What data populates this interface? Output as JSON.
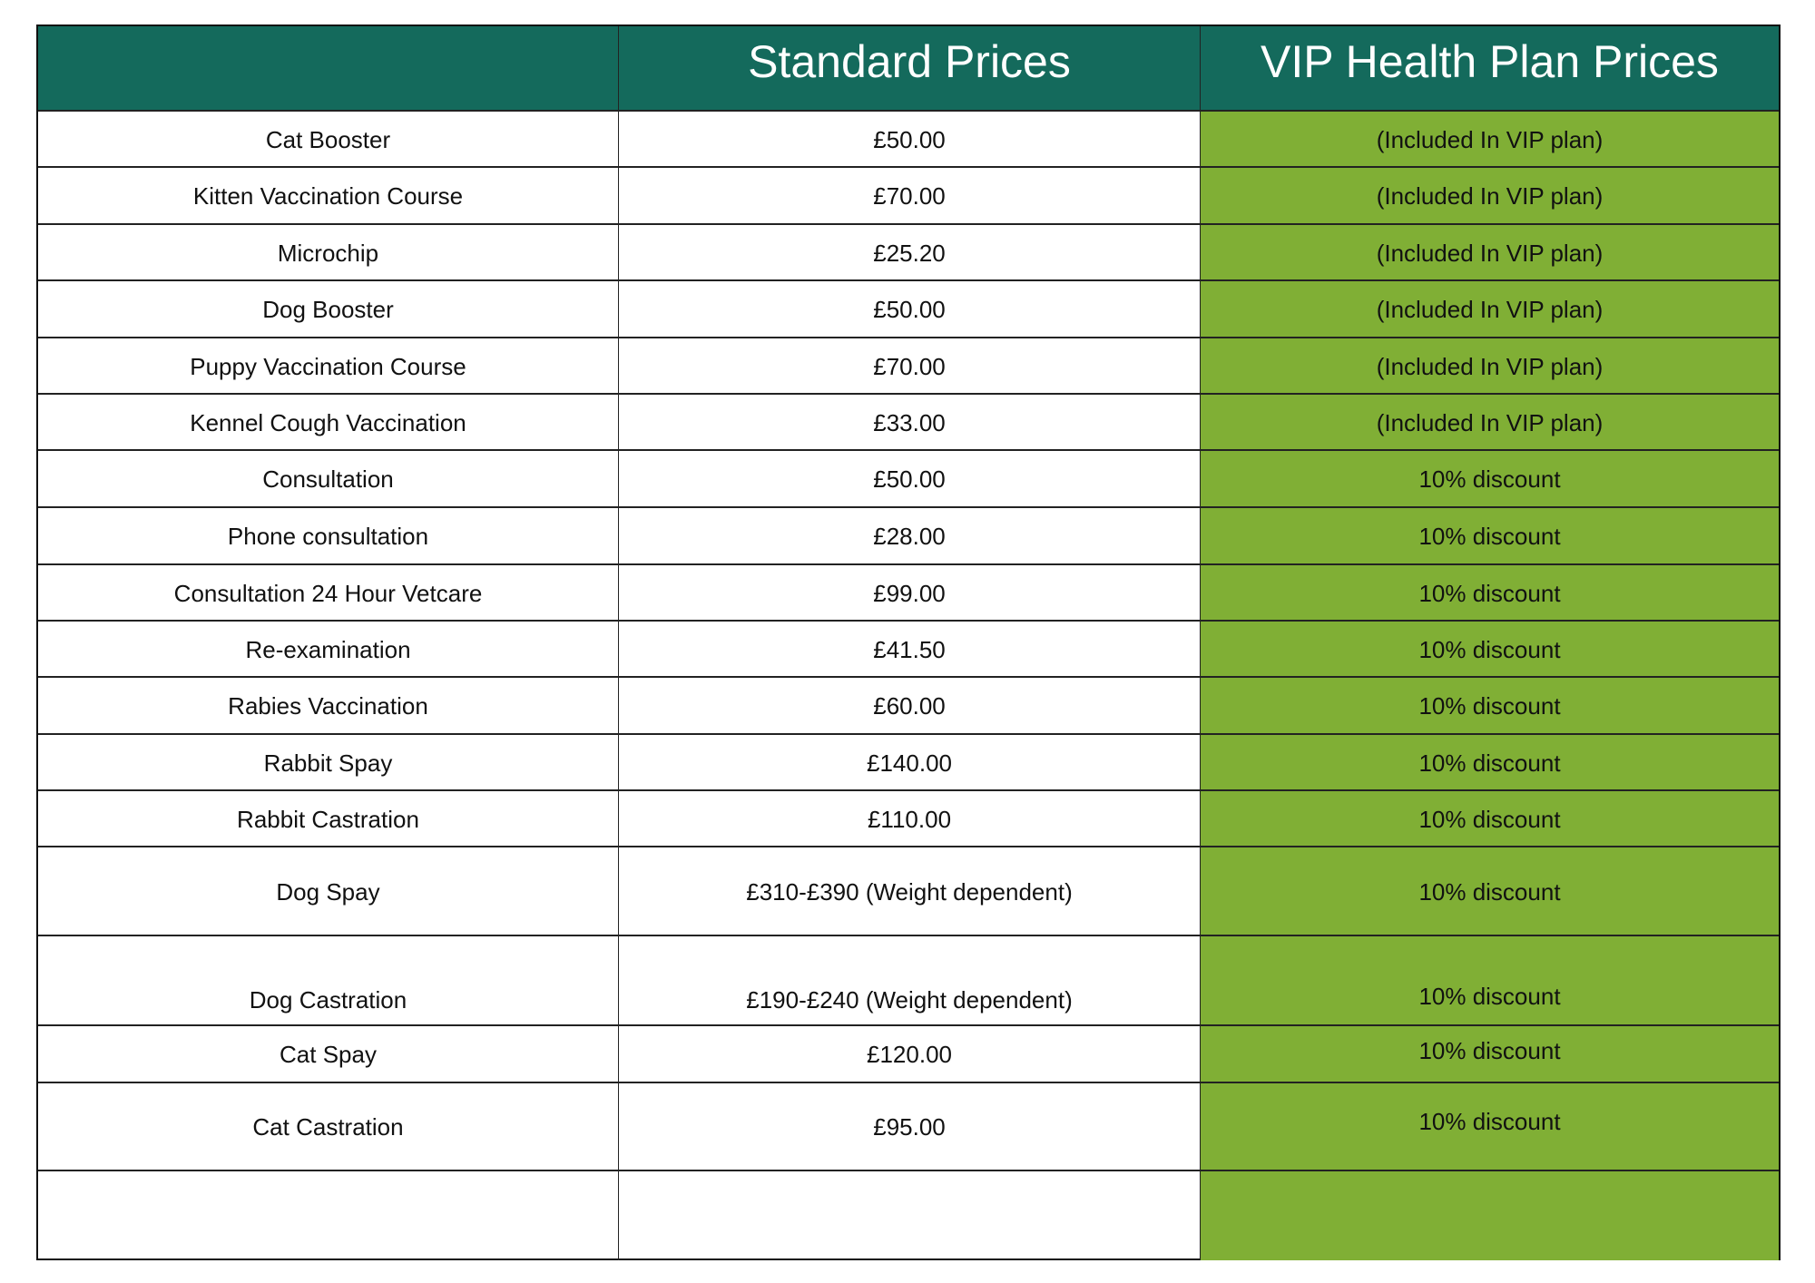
{
  "colors": {
    "header_bg": "#146A5C",
    "vip_bg": "#80AF35",
    "text": "#111111",
    "header_text": "#FFFFFF"
  },
  "table": {
    "headers": [
      "",
      "Standard Prices",
      "VIP Health Plan Prices"
    ],
    "rows": [
      {
        "service": "Cat Booster",
        "standard": "£50.00",
        "vip": "(Included In VIP plan)"
      },
      {
        "service": "Kitten Vaccination Course",
        "standard": "£70.00",
        "vip": "(Included In VIP plan)"
      },
      {
        "service": "Microchip",
        "standard": "£25.20",
        "vip": "(Included In VIP plan)"
      },
      {
        "service": "Dog Booster",
        "standard": "£50.00",
        "vip": "(Included In VIP plan)"
      },
      {
        "service": "Puppy Vaccination Course",
        "standard": "£70.00",
        "vip": "(Included In VIP plan)"
      },
      {
        "service": "Kennel Cough Vaccination",
        "standard": "£33.00",
        "vip": "(Included In VIP plan)"
      },
      {
        "service": "Consultation",
        "standard": "£50.00",
        "vip": "10% discount"
      },
      {
        "service": "Phone consultation",
        "standard": "£28.00",
        "vip": "10% discount"
      },
      {
        "service": "Consultation 24 Hour Vetcare",
        "standard": "£99.00",
        "vip": "10% discount"
      },
      {
        "service": "Re-examination",
        "standard": "£41.50",
        "vip": "10% discount"
      },
      {
        "service": "Rabies Vaccination",
        "standard": "£60.00",
        "vip": "10% discount"
      },
      {
        "service": "Rabbit Spay",
        "standard": "£140.00",
        "vip": "10% discount"
      },
      {
        "service": "Rabbit Castration",
        "standard": "£110.00",
        "vip": "10% discount"
      },
      {
        "service": "Dog Spay",
        "standard": "£310-£390 (Weight dependent)",
        "vip": "10% discount"
      },
      {
        "service": "Dog Castration",
        "standard": "£190-£240 (Weight dependent)",
        "vip": "10% discount"
      },
      {
        "service": "Cat Spay",
        "standard": "£120.00",
        "vip": "10% discount"
      },
      {
        "service": "Cat Castration",
        "standard": "£95.00",
        "vip": "10% discount"
      },
      {
        "service": "",
        "standard": "",
        "vip": ""
      }
    ]
  }
}
